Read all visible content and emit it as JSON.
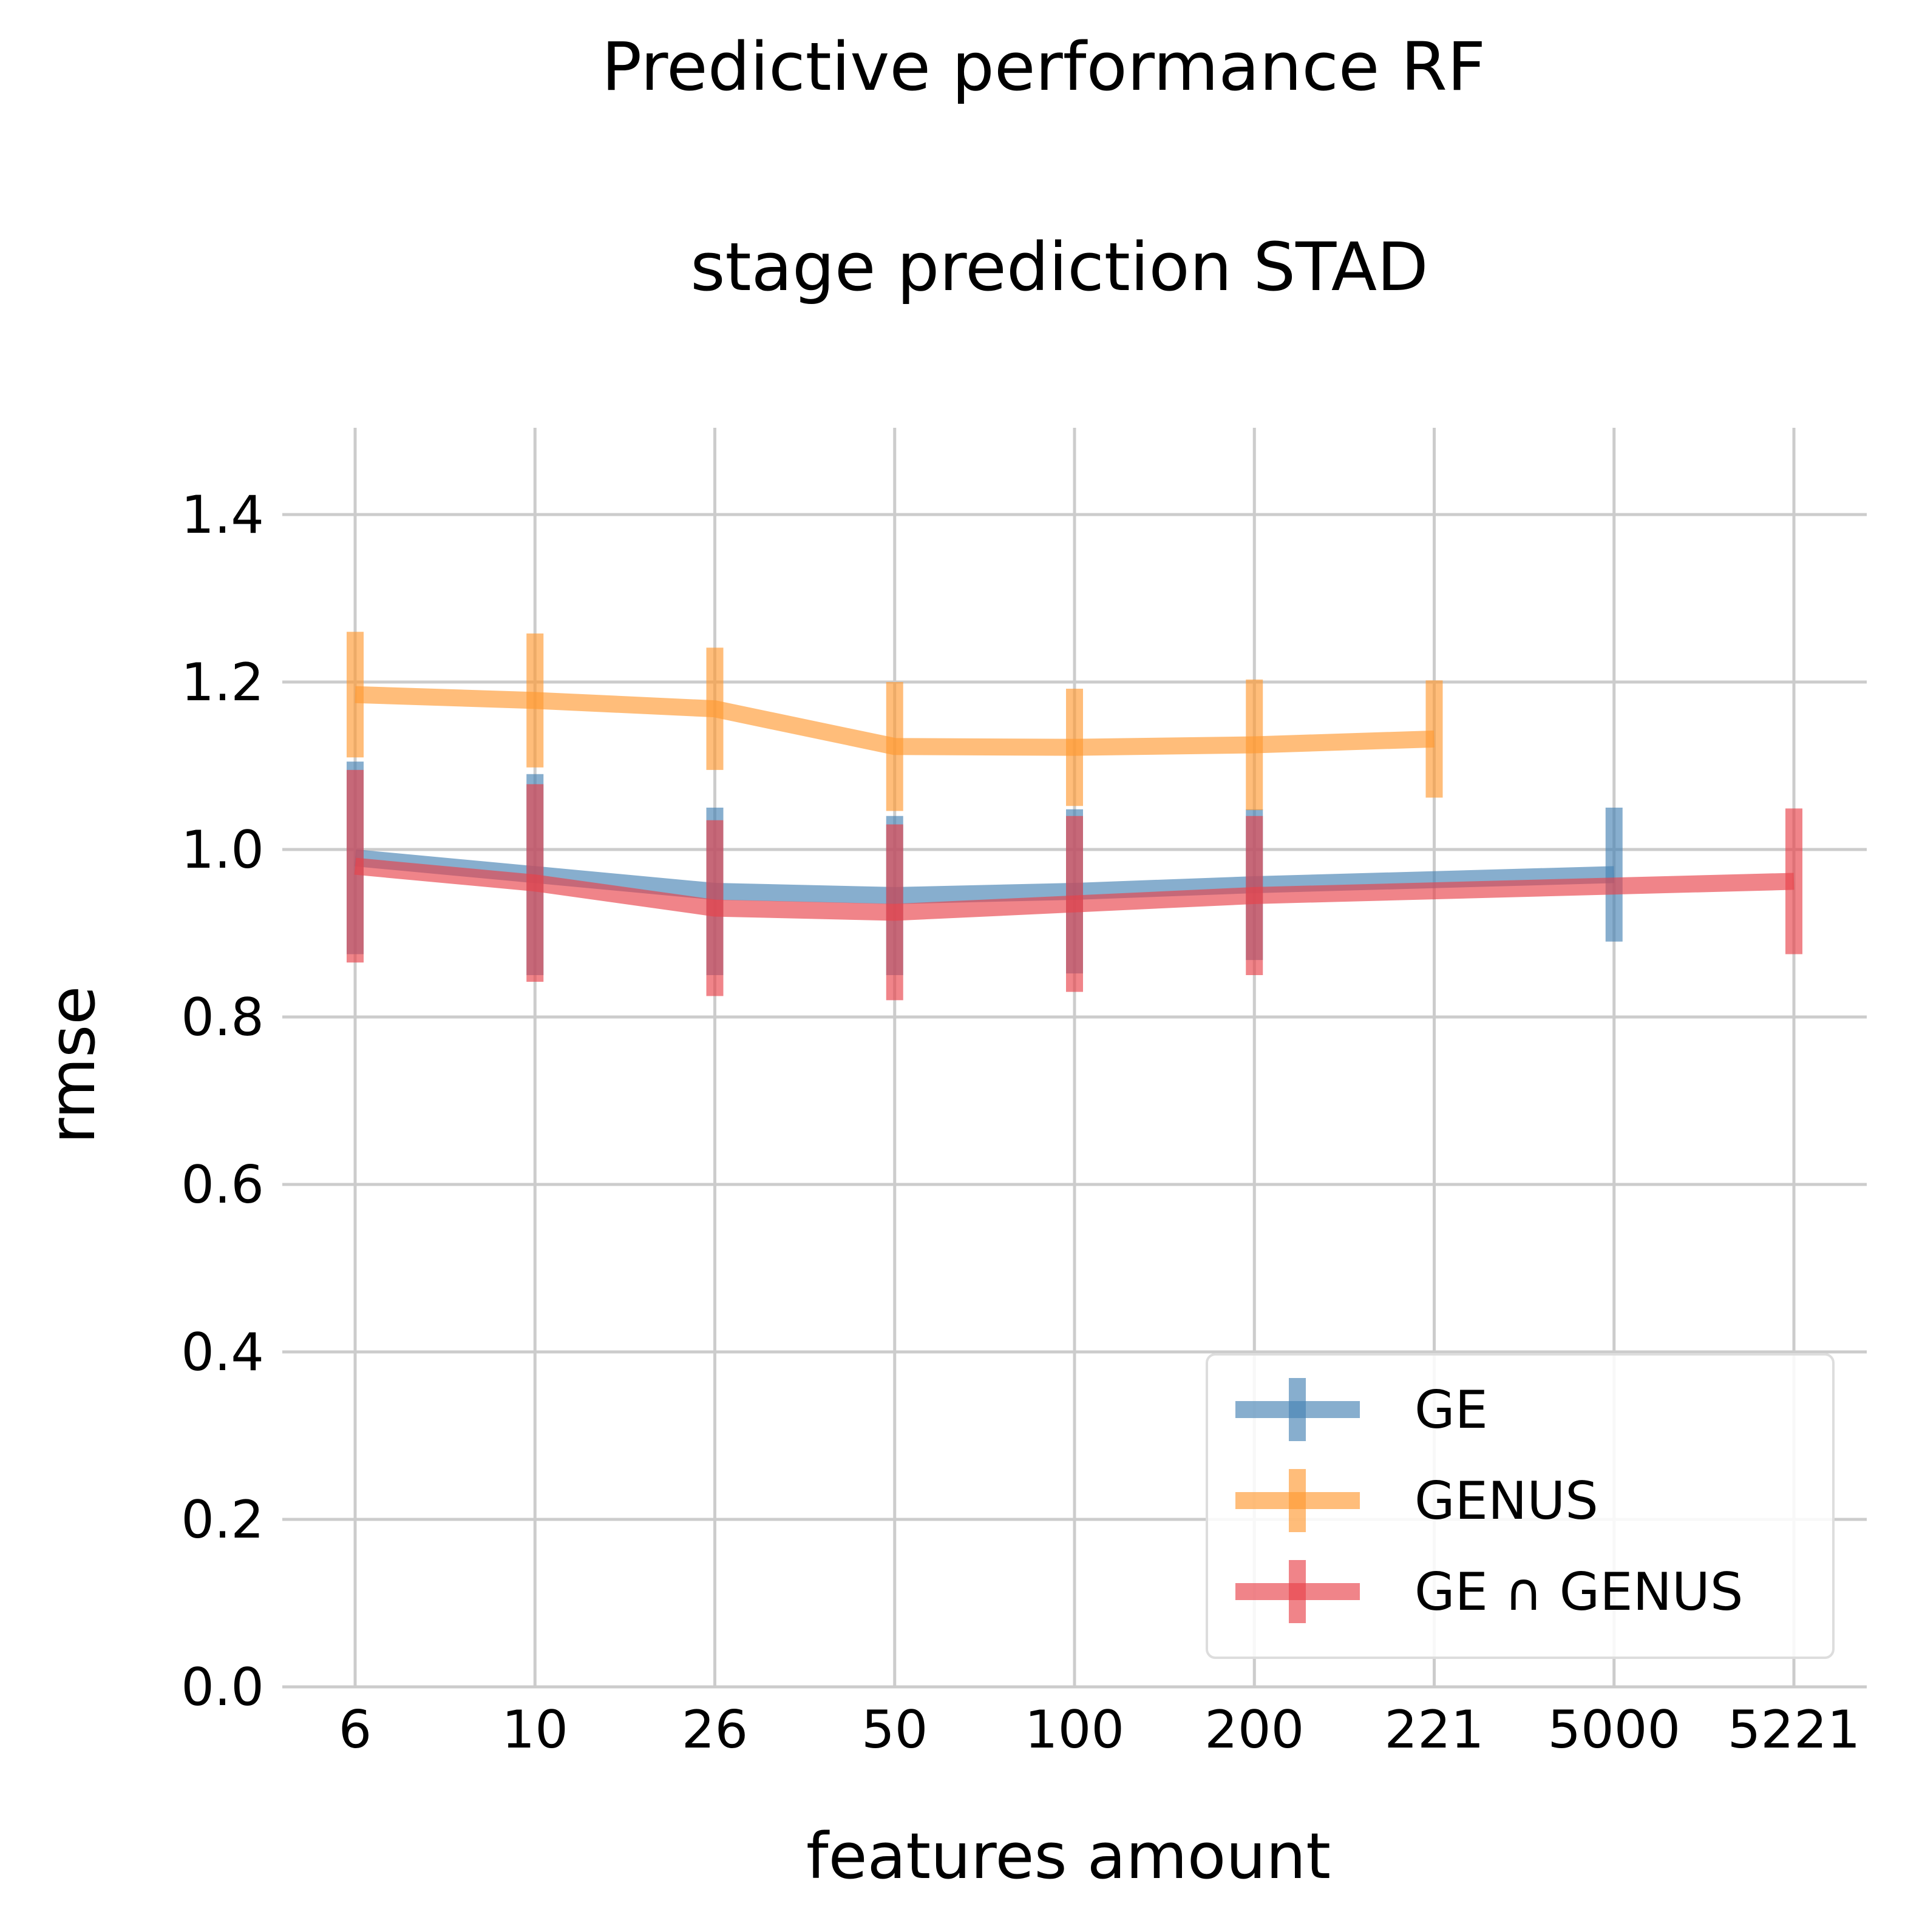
{
  "chart_data": {
    "type": "line",
    "title": "Predictive performance RF",
    "subtitle": "stage prediction STAD",
    "xlabel": "features amount",
    "ylabel": "rmse",
    "x_scale": "categorical",
    "categories": [
      "6",
      "10",
      "26",
      "50",
      "100",
      "200",
      "221",
      "5000",
      "5221"
    ],
    "ylim": [
      0.0,
      1.5
    ],
    "yticks": [
      "0.0",
      "0.2",
      "0.4",
      "0.6",
      "0.8",
      "1.0",
      "1.2",
      "1.4"
    ],
    "grid": true,
    "legend_position": "lower-right",
    "series": [
      {
        "name": "GE",
        "color": "#4682b4",
        "x": [
          "6",
          "10",
          "26",
          "50",
          "100",
          "200",
          "5000"
        ],
        "values": [
          0.99,
          0.97,
          0.95,
          0.945,
          0.95,
          0.958,
          0.97
        ],
        "error": [
          0.115,
          0.12,
          0.1,
          0.095,
          0.098,
          0.09,
          0.08
        ]
      },
      {
        "name": "GENUS",
        "color": "#ff9933",
        "x": [
          "6",
          "10",
          "26",
          "50",
          "100",
          "200",
          "221"
        ],
        "values": [
          1.185,
          1.178,
          1.168,
          1.123,
          1.122,
          1.125,
          1.132
        ],
        "error": [
          0.075,
          0.08,
          0.073,
          0.077,
          0.07,
          0.078,
          0.07
        ]
      },
      {
        "name": "GE ∩ GENUS",
        "color": "#e8424a",
        "x": [
          "6",
          "10",
          "26",
          "50",
          "100",
          "200",
          "5221"
        ],
        "values": [
          0.98,
          0.96,
          0.93,
          0.925,
          0.935,
          0.945,
          0.962
        ],
        "error": [
          0.115,
          0.118,
          0.105,
          0.105,
          0.105,
          0.095,
          0.087
        ]
      }
    ]
  }
}
